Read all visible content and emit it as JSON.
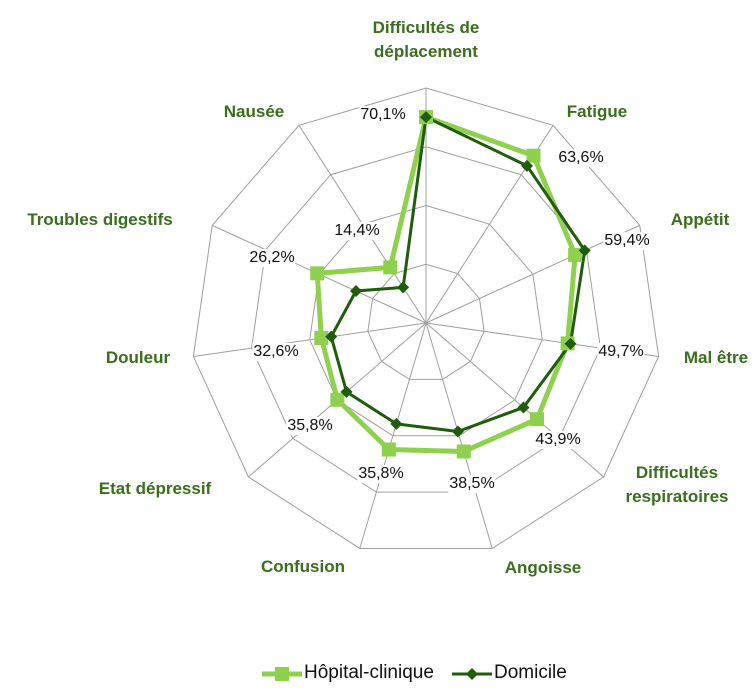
{
  "chart_data": {
    "type": "radar",
    "categories": [
      "Difficultés de déplacement",
      "Fatigue",
      "Appétit",
      "Mal être",
      "Difficultés respiratoires",
      "Angoisse",
      "Confusion",
      "Etat dépressif",
      "Douleur",
      "Troubles digestifs",
      "Nausée"
    ],
    "series": [
      {
        "name": "Hôpital-clinique",
        "color": "#8fd14f",
        "marker": "square",
        "values": [
          70.1,
          67.7,
          55.8,
          48.7,
          50,
          45.6,
          44.9,
          39.9,
          36,
          40.7,
          22.5
        ]
      },
      {
        "name": "Domicile",
        "color": "#1f5c0c",
        "marker": "diamond",
        "values": [
          70.1,
          63.6,
          59.4,
          49.7,
          43.9,
          38.5,
          35.8,
          35.8,
          32.6,
          26.2,
          14.4
        ],
        "value_labels": [
          "70,1%",
          "63,6%",
          "59,4%",
          "49,7%",
          "43,9%",
          "38,5%",
          "35,8%",
          "35,8%",
          "32,6%",
          "26,2%",
          "14,4%"
        ]
      }
    ],
    "ylim": [
      0,
      80
    ],
    "yticks": [
      0,
      20,
      40,
      60,
      80
    ],
    "grid": true,
    "legend": "bottom"
  }
}
